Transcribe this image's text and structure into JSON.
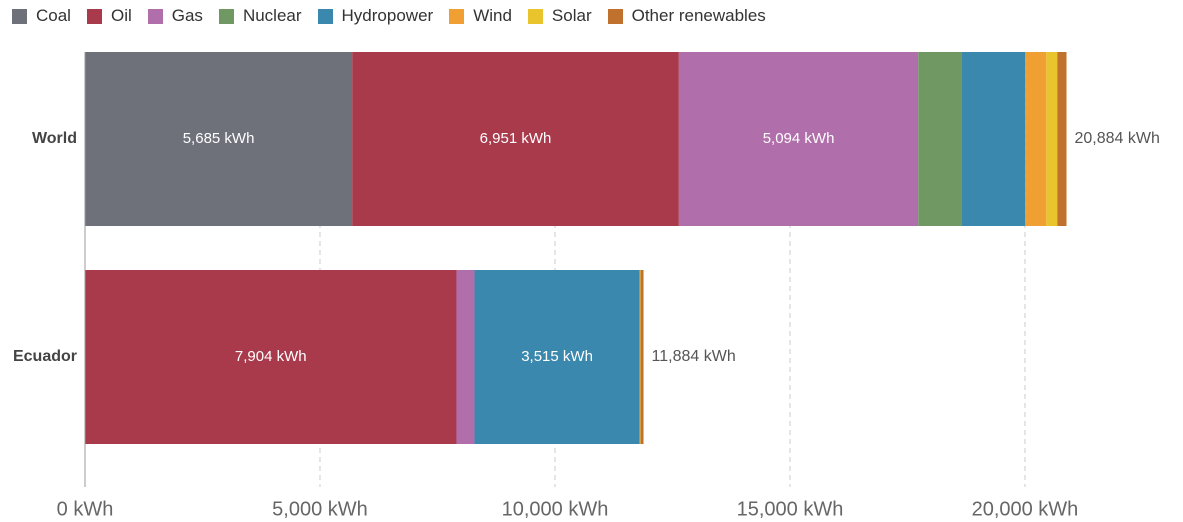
{
  "chart_data": {
    "type": "stacked-bar-horizontal",
    "categories": [
      "World",
      "Ecuador"
    ],
    "series": [
      {
        "name": "Coal",
        "color": "#6e717a",
        "values": [
          5685,
          0
        ],
        "value_labels": [
          "5,685 kWh",
          null
        ]
      },
      {
        "name": "Oil",
        "color": "#a83a4c",
        "values": [
          6951,
          7904
        ],
        "value_labels": [
          "6,951 kWh",
          "7,904 kWh"
        ]
      },
      {
        "name": "Gas",
        "color": "#b06eaa",
        "values": [
          5094,
          383
        ],
        "value_labels": [
          "5,094 kWh",
          null
        ]
      },
      {
        "name": "Nuclear",
        "color": "#6f9862",
        "values": [
          915,
          0
        ]
      },
      {
        "name": "Hydropower",
        "color": "#3a88ae",
        "values": [
          1362,
          3515
        ],
        "value_labels": [
          null,
          "3,515 kWh"
        ]
      },
      {
        "name": "Wind",
        "color": "#f0a032",
        "values": [
          447,
          10
        ]
      },
      {
        "name": "Solar",
        "color": "#eac42c",
        "values": [
          234,
          8
        ]
      },
      {
        "name": "Other renewables",
        "color": "#c0712e",
        "values": [
          196,
          64
        ]
      }
    ],
    "totals": [
      20884,
      11884
    ],
    "total_labels": [
      "20,884 kWh",
      "11,884 kWh"
    ],
    "xlim": [
      0,
      20884
    ],
    "xticks": [
      {
        "value": 0,
        "label": "0 kWh"
      },
      {
        "value": 5000,
        "label": "5,000 kWh"
      },
      {
        "value": 10000,
        "label": "10,000 kWh"
      },
      {
        "value": 15000,
        "label": "15,000 kWh"
      },
      {
        "value": 20000,
        "label": "20,000 kWh"
      }
    ],
    "grid": true,
    "legend": "top-left"
  }
}
